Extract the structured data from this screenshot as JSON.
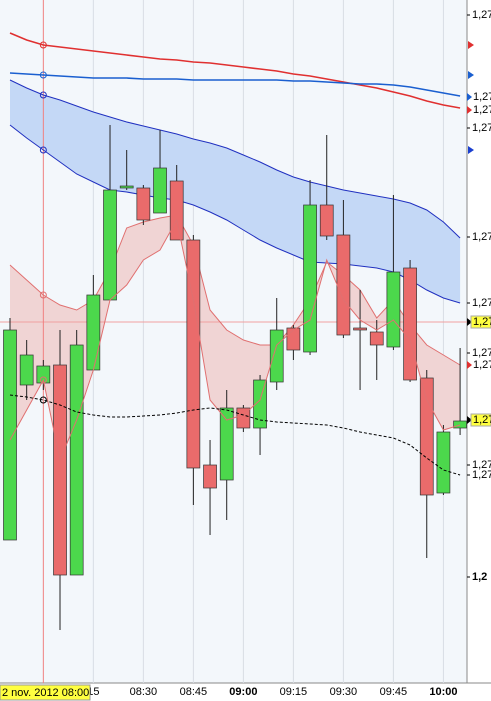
{
  "chart_data": {
    "type": "candlestick",
    "categories": [
      null,
      null,
      null,
      null,
      null,
      "15",
      null,
      null,
      "08:30",
      null,
      null,
      "08:45",
      null,
      null,
      "09:00",
      null,
      null,
      "09:15",
      null,
      null,
      "09:30",
      null,
      null,
      "09:45",
      null,
      null,
      "10:00",
      null
    ],
    "cursor": {
      "index": 2,
      "label": "2 nov. 2012 08:00"
    },
    "open": [
      1.2746,
      1.27615,
      1.27617,
      1.27635,
      1.27425,
      1.2763,
      1.277,
      1.27812,
      1.27812,
      1.27787,
      1.27819,
      1.2776,
      1.27535,
      1.2752,
      1.27592,
      1.27572,
      1.27618,
      1.27672,
      1.27648,
      1.27795,
      1.27765,
      1.27672,
      1.27668,
      1.27653,
      1.27732,
      1.27622,
      1.27507,
      1.27572
    ],
    "high": [
      1.27682,
      1.2766,
      1.2764,
      1.2767,
      1.2767,
      1.27725,
      1.27875,
      1.2785,
      1.27815,
      1.2787,
      1.27835,
      1.27765,
      1.2756,
      1.2761,
      1.27595,
      1.27625,
      1.27702,
      1.27675,
      1.2782,
      1.27865,
      1.278,
      1.2771,
      1.2768,
      1.27805,
      1.2774,
      1.2763,
      1.27575,
      1.27652
    ],
    "low": [
      1.2746,
      1.276,
      1.2761,
      1.2737,
      1.27425,
      1.2763,
      1.277,
      1.2781,
      1.27775,
      1.27787,
      1.2776,
      1.27495,
      1.27465,
      1.2748,
      1.27568,
      1.27545,
      1.2761,
      1.2764,
      1.27645,
      1.2776,
      1.27662,
      1.2761,
      1.2762,
      1.2765,
      1.27618,
      1.27442,
      1.27505,
      1.27565
    ],
    "close": [
      1.2767,
      1.27645,
      1.27634,
      1.27425,
      1.27655,
      1.27705,
      1.2781,
      1.27814,
      1.2778,
      1.27832,
      1.2776,
      1.27532,
      1.27512,
      1.27592,
      1.27572,
      1.2762,
      1.2767,
      1.2765,
      1.27795,
      1.27764,
      1.27665,
      1.27671,
      1.27655,
      1.27728,
      1.2762,
      1.27505,
      1.27568,
      1.27579
    ],
    "up_color": "#4cd84c",
    "down_color": "#ea6b6b",
    "overlays": [
      {
        "color": "#e03030",
        "values": [
          1.27967,
          1.2796,
          1.27955,
          1.27953,
          1.27951,
          1.27949,
          1.27947,
          1.27945,
          1.27943,
          1.27941,
          1.2794,
          1.27938,
          1.27937,
          1.27935,
          1.27933,
          1.27931,
          1.27929,
          1.27926,
          1.27924,
          1.27921,
          1.27918,
          1.27915,
          1.27912,
          1.27908,
          1.27904,
          1.27899,
          1.27895,
          1.27892
        ]
      },
      {
        "color": "#1a5fd0",
        "values": [
          1.27927,
          1.27926,
          1.27925,
          1.27924,
          1.27923,
          1.27922,
          1.27922,
          1.27922,
          1.27921,
          1.27921,
          1.27921,
          1.2792,
          1.2792,
          1.2792,
          1.2792,
          1.2792,
          1.2792,
          1.27919,
          1.27919,
          1.27918,
          1.27917,
          1.27916,
          1.27916,
          1.27915,
          1.27913,
          1.2791,
          1.27907,
          1.27904
        ]
      },
      {
        "color": "#2030c0",
        "fill_to": 3,
        "fill": "#c4d8f6",
        "values": [
          1.2792,
          1.27912,
          1.27905,
          1.279,
          1.27894,
          1.27888,
          1.27883,
          1.27878,
          1.27874,
          1.2787,
          1.27866,
          1.27861,
          1.27857,
          1.27852,
          1.27845,
          1.27838,
          1.2783,
          1.27823,
          1.27818,
          1.27814,
          1.2781,
          1.27807,
          1.27804,
          1.27801,
          1.27797,
          1.2779,
          1.27778,
          1.27762
        ]
      },
      {
        "color": "#2030c0",
        "values": [
          1.27875,
          1.27862,
          1.2785,
          1.27838,
          1.27826,
          1.27818,
          1.2781,
          1.27808,
          1.27805,
          1.27802,
          1.278,
          1.27795,
          1.27788,
          1.2778,
          1.2777,
          1.2776,
          1.27752,
          1.27745,
          1.27738,
          1.27737,
          1.27736,
          1.27734,
          1.27732,
          1.27728,
          1.2772,
          1.2771,
          1.27702,
          1.27697
        ]
      },
      {
        "color": "#e07070",
        "fill_to": 5,
        "fill": "#f0d4d4",
        "values": [
          1.27735,
          1.2772,
          1.27705,
          1.27695,
          1.2769,
          1.277,
          1.2773,
          1.27772,
          1.27778,
          1.27782,
          1.27785,
          1.27755,
          1.2769,
          1.2767,
          1.2766,
          1.27655,
          1.27655,
          1.27675,
          1.277,
          1.27738,
          1.27725,
          1.2771,
          1.27682,
          1.277,
          1.27675,
          1.27655,
          1.27645,
          1.27635
        ]
      },
      {
        "color": "#e07070",
        "values": [
          1.2756,
          1.2759,
          1.2762,
          1.2754,
          1.2758,
          1.2763,
          1.277,
          1.27715,
          1.2774,
          1.2775,
          1.2778,
          1.277,
          1.276,
          1.2758,
          1.27585,
          1.276,
          1.27655,
          1.2767,
          1.2768,
          1.2774,
          1.277,
          1.2768,
          1.2767,
          1.2768,
          1.2766,
          1.276,
          1.2757,
          1.27575
        ]
      },
      {
        "color": "#000000",
        "dashed": true,
        "values": [
          1.27605,
          1.27603,
          1.276,
          1.27595,
          1.27588,
          1.27585,
          1.27583,
          1.27583,
          1.27584,
          1.27585,
          1.27587,
          1.2759,
          1.27592,
          1.2759,
          1.27585,
          1.2758,
          1.27578,
          1.27577,
          1.27576,
          1.27575,
          1.27572,
          1.27568,
          1.27565,
          1.27562,
          1.27555,
          1.27542,
          1.2753,
          1.27525
        ]
      }
    ],
    "ylim": [
      1.2732,
      1.28
    ],
    "yticks": [
      {
        "value": 1.27985,
        "label": "1,27"
      },
      {
        "value": 1.27872,
        "label": "1,27"
      },
      {
        "value": 1.27763,
        "label": "1,27"
      },
      {
        "value": 1.27697,
        "label": "1,27"
      },
      {
        "value": 1.27647,
        "label": "1,27"
      },
      {
        "value": 1.27535,
        "label": "1,27"
      },
      {
        "value": 1.27525,
        "label": "1,27"
      },
      {
        "value": 1.27423,
        "label": "1,2"
      }
    ],
    "price_markers": [
      {
        "value": 1.27903,
        "label": "1,27",
        "color": "#1a5fd0"
      },
      {
        "value": 1.2789,
        "label": "1,27",
        "color": "#e03030"
      },
      {
        "value": 1.27678,
        "label": "1,27",
        "color": "#000000",
        "background": "#ffff40",
        "line": true
      },
      {
        "value": 1.27635,
        "label": "1,27",
        "color": "#e03030"
      },
      {
        "value": 1.2758,
        "label": "1,27",
        "color": "#000000",
        "background": "#ffff40"
      }
    ]
  }
}
